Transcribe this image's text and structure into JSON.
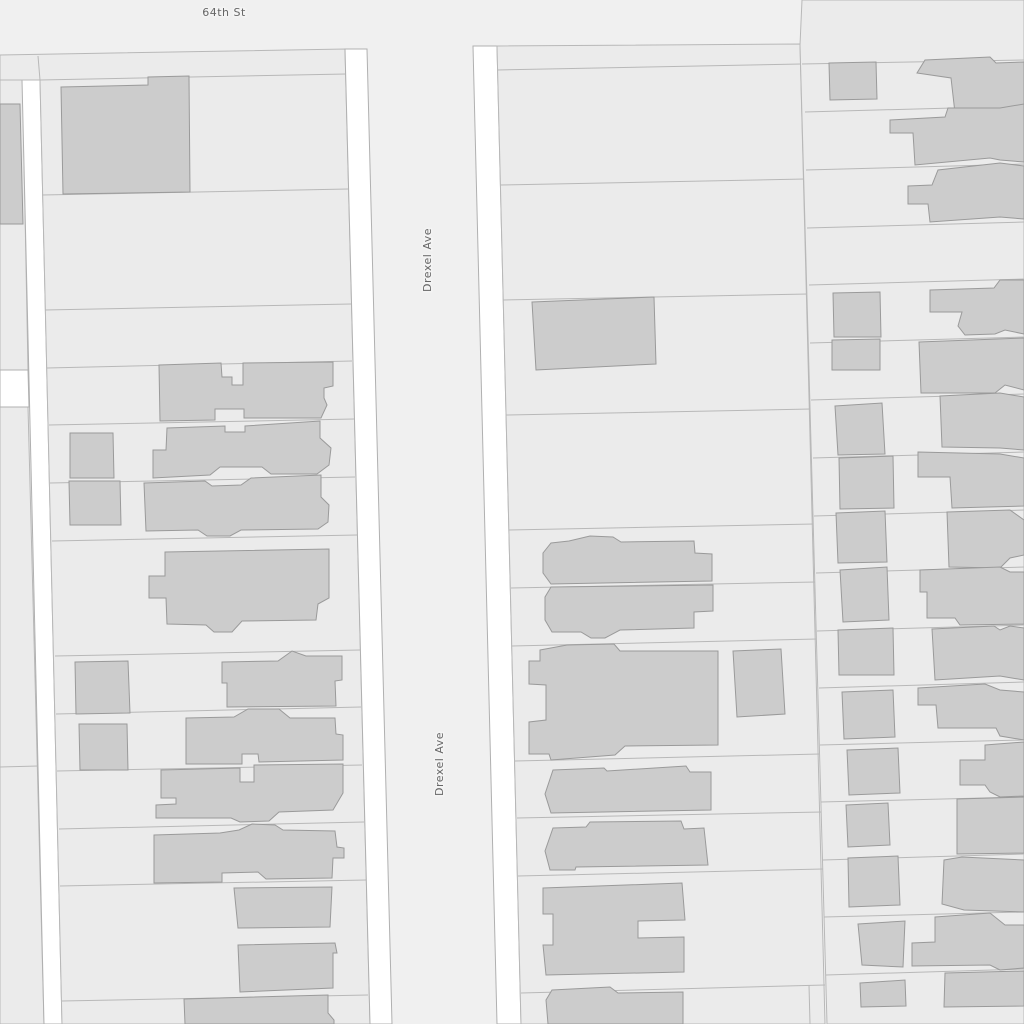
{
  "map": {
    "streets": [
      {
        "name": "64th St"
      },
      {
        "name": "Drexel Ave"
      },
      {
        "name": "Drexel Ave"
      }
    ],
    "colors": {
      "background": "#f0f0f0",
      "parcel": "#ebebeb",
      "sidewalk": "#ffffff",
      "building": "#cccccc",
      "label": "#666666"
    }
  }
}
